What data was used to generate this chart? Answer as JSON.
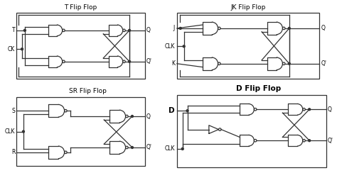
{
  "bg_color": "#ffffff",
  "line_color": "#333333",
  "titles": {
    "T": "T Flip Flop",
    "JK": "JK Flip Flop",
    "SR": "SR Flip Flop",
    "D": "D Flip Flop"
  },
  "title_fontsize": 6.5,
  "label_fontsize": 5.5,
  "lw": 0.9
}
